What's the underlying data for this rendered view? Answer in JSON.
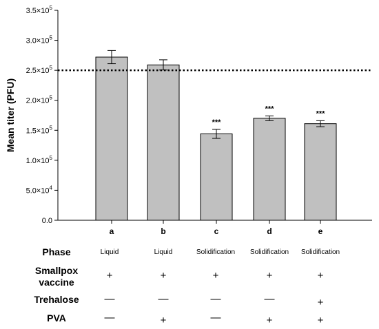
{
  "chart_data": {
    "type": "bar",
    "ylabel": "Mean titer (PFU)",
    "categories": [
      "a",
      "b",
      "c",
      "d",
      "e"
    ],
    "values": [
      272000,
      259000,
      144000,
      170000,
      161000
    ],
    "errors": [
      11000,
      8500,
      7500,
      4000,
      5000
    ],
    "significance": [
      "",
      "",
      "***",
      "***",
      "***"
    ],
    "reference_line": 250000,
    "ylim": [
      0,
      350000
    ],
    "yticks": [
      0,
      50000,
      100000,
      150000,
      200000,
      250000,
      300000,
      350000
    ],
    "ytick_labels": [
      {
        "mantissa": "0.0",
        "exp": ""
      },
      {
        "mantissa": "5.0×10",
        "exp": "4"
      },
      {
        "mantissa": "1.0×10",
        "exp": "5"
      },
      {
        "mantissa": "1.5×10",
        "exp": "5"
      },
      {
        "mantissa": "2.0×10",
        "exp": "5"
      },
      {
        "mantissa": "2.5×10",
        "exp": "5"
      },
      {
        "mantissa": "3.0×10",
        "exp": "5"
      },
      {
        "mantissa": "3.5×10",
        "exp": "5"
      }
    ],
    "grid": false,
    "bar_color": "#c0c0c0"
  },
  "design_table": {
    "rows": [
      {
        "label": "Phase",
        "values": [
          "Liquid",
          "Liquid",
          "Solidification",
          "Solidification",
          "Solidification"
        ]
      },
      {
        "label": "Smallpox vaccine",
        "values": [
          "+",
          "+",
          "+",
          "+",
          "+"
        ]
      },
      {
        "label": "Trehalose",
        "values": [
          "—",
          "—",
          "—",
          "—",
          "+"
        ]
      },
      {
        "label": "PVA",
        "values": [
          "—",
          "+",
          "—",
          "+",
          "+"
        ]
      }
    ]
  }
}
